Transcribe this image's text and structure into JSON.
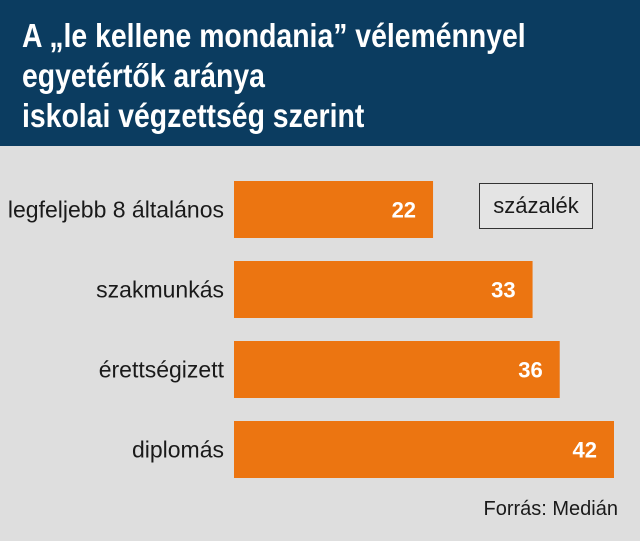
{
  "title_lines": [
    "A „le kellene mondania” véleménnyel",
    "egyetértők aránya",
    "iskolai végzettség szerint"
  ],
  "unit": "százalék",
  "source": "Forrás: Medián",
  "colors": {
    "header_bg": "#0b3c60",
    "bar": "#ec7511",
    "background": "#dedede"
  },
  "chart_data": {
    "type": "bar",
    "orientation": "horizontal",
    "categories": [
      "legfeljebb 8 általános",
      "szakmunkás",
      "érettségizett",
      "diplomás"
    ],
    "values": [
      22,
      33,
      36,
      42
    ],
    "data_labels": [
      "22",
      "33",
      "36",
      "42"
    ],
    "unit": "százalék",
    "xlim": [
      0,
      42
    ],
    "grid": false,
    "legend": "none"
  }
}
